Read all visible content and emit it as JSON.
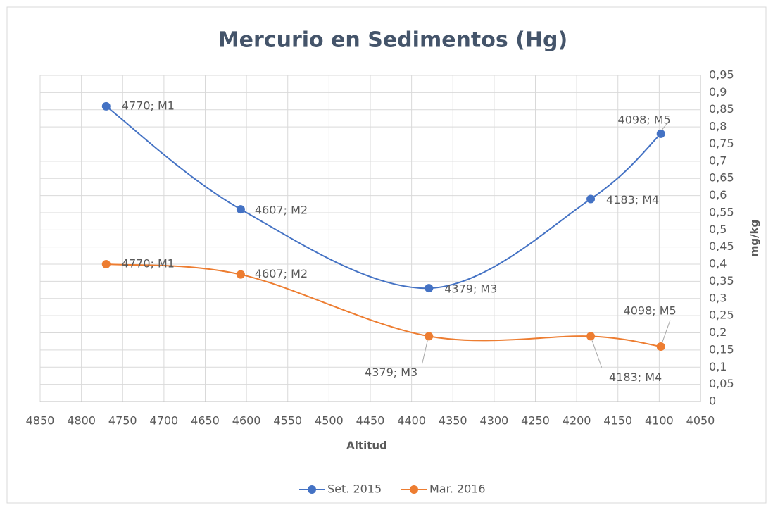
{
  "chart_data": {
    "type": "line",
    "title": "Mercurio en Sedimentos (Hg)",
    "x_label": "Altitud",
    "y_label": "mg/kg",
    "x_reversed": true,
    "y_axis_side": "right",
    "grid": true,
    "legend": "bottom",
    "xlim": [
      4850,
      4050
    ],
    "xticks": [
      4850,
      4800,
      4750,
      4700,
      4650,
      4600,
      4550,
      4500,
      4450,
      4400,
      4350,
      4300,
      4250,
      4200,
      4150,
      4100,
      4050
    ],
    "ylim": [
      0,
      0.95
    ],
    "yticks": [
      {
        "value": 0,
        "label": "0"
      },
      {
        "value": 0.05,
        "label": "0,05"
      },
      {
        "value": 0.1,
        "label": "0,1"
      },
      {
        "value": 0.15,
        "label": "0,15"
      },
      {
        "value": 0.2,
        "label": "0,2"
      },
      {
        "value": 0.25,
        "label": "0,25"
      },
      {
        "value": 0.3,
        "label": "0,3"
      },
      {
        "value": 0.35,
        "label": "0,35"
      },
      {
        "value": 0.4,
        "label": "0,4"
      },
      {
        "value": 0.45,
        "label": "0,45"
      },
      {
        "value": 0.5,
        "label": "0,5"
      },
      {
        "value": 0.55,
        "label": "0,55"
      },
      {
        "value": 0.6,
        "label": "0,6"
      },
      {
        "value": 0.65,
        "label": "0,65"
      },
      {
        "value": 0.7,
        "label": "0,7"
      },
      {
        "value": 0.75,
        "label": "0,75"
      },
      {
        "value": 0.8,
        "label": "0,8"
      },
      {
        "value": 0.85,
        "label": "0,85"
      },
      {
        "value": 0.9,
        "label": "0,9"
      },
      {
        "value": 0.95,
        "label": "0,95"
      }
    ],
    "series": [
      {
        "name": "Set. 2015",
        "color": "#4472c4",
        "x": [
          4770,
          4607,
          4379,
          4183,
          4098
        ],
        "values": [
          0.86,
          0.56,
          0.33,
          0.59,
          0.78
        ],
        "point_labels": [
          "4770; M1",
          "4607; M2",
          "4379; M3",
          "4183; M4",
          "4098; M5"
        ]
      },
      {
        "name": "Mar. 2016",
        "color": "#ed7d31",
        "x": [
          4770,
          4607,
          4379,
          4183,
          4098
        ],
        "values": [
          0.4,
          0.37,
          0.19,
          0.19,
          0.16
        ],
        "point_labels": [
          "4770; M1",
          "4607; M2",
          "4379; M3",
          "4183; M4",
          "4098; M5"
        ]
      }
    ]
  }
}
